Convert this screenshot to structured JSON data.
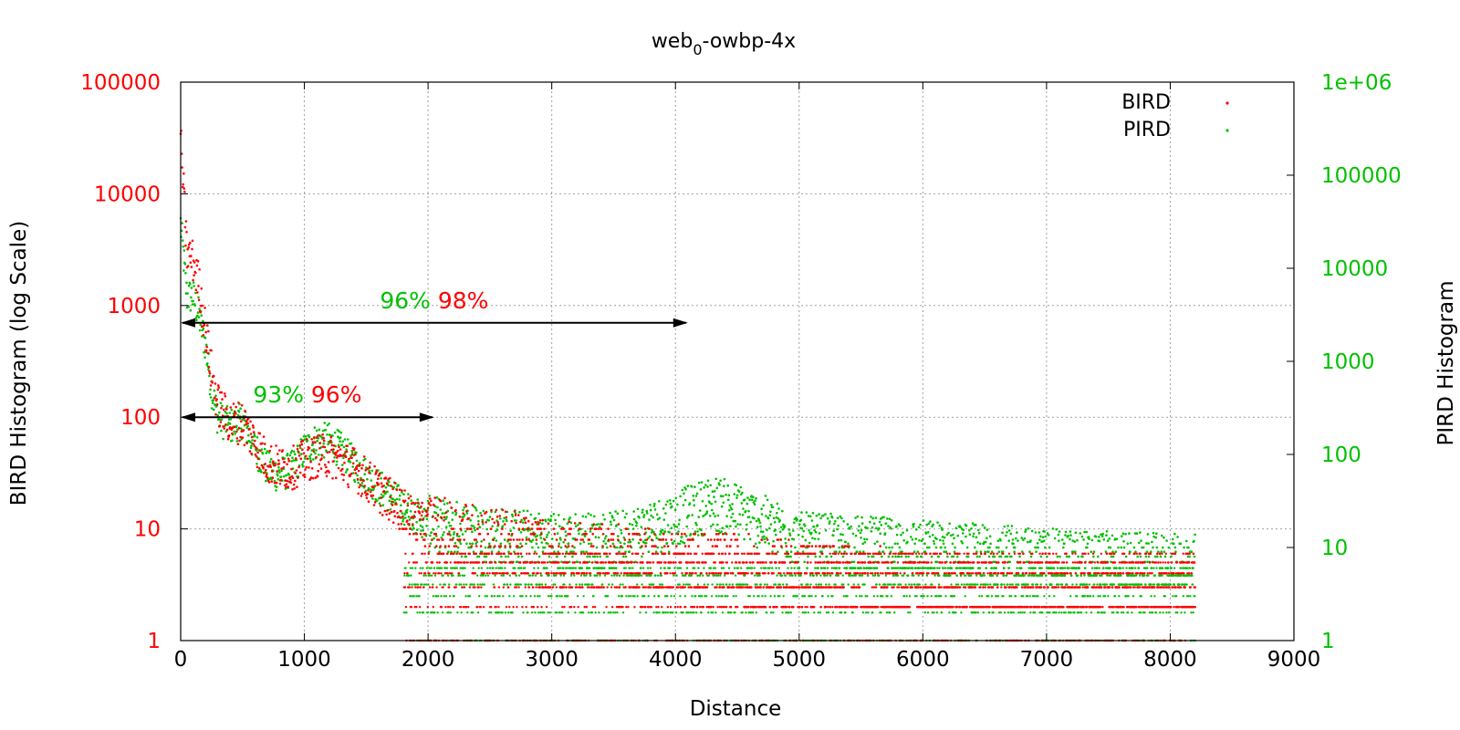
{
  "chart_data": {
    "type": "scatter",
    "title": {
      "main": "web",
      "sub": "0",
      "suffix": "-owbp-4x"
    },
    "xlabel": "Distance",
    "ylabel": "BIRD Histogram (log Scale)",
    "y2label": "PIRD Histogram",
    "xlim": [
      0,
      9000
    ],
    "ylim": [
      1,
      100000
    ],
    "y2lim": [
      1,
      1000000
    ],
    "log_y": true,
    "log_y2": true,
    "grid": true,
    "legend_position": "top-right",
    "x_ticks": [
      "0",
      "1000",
      "2000",
      "3000",
      "4000",
      "5000",
      "6000",
      "7000",
      "8000",
      "9000"
    ],
    "y_ticks": [
      "1",
      "10",
      "100",
      "1000",
      "10000",
      "100000"
    ],
    "y2_ticks": [
      "1",
      "10",
      "100",
      "1000",
      "10000",
      "100000",
      "1e+06"
    ],
    "colors": {
      "BIRD": "#ff0000",
      "PIRD": "#00c000",
      "axis": "#000000",
      "grid": "#a0a0a0"
    },
    "series": [
      {
        "name": "BIRD",
        "axis": "y",
        "approx_trend": [
          [
            0,
            30000
          ],
          [
            50,
            3000
          ],
          [
            100,
            2500
          ],
          [
            150,
            1500
          ],
          [
            200,
            600
          ],
          [
            250,
            250
          ],
          [
            300,
            130
          ],
          [
            400,
            90
          ],
          [
            500,
            90
          ],
          [
            600,
            60
          ],
          [
            700,
            40
          ],
          [
            800,
            35
          ],
          [
            900,
            35
          ],
          [
            1000,
            40
          ],
          [
            1100,
            45
          ],
          [
            1200,
            45
          ],
          [
            1300,
            40
          ],
          [
            1400,
            35
          ],
          [
            1500,
            28
          ],
          [
            1600,
            22
          ],
          [
            1700,
            18
          ],
          [
            1800,
            15
          ],
          [
            1900,
            12
          ],
          [
            2000,
            10
          ],
          [
            2500,
            8
          ],
          [
            3000,
            6
          ],
          [
            4000,
            5
          ],
          [
            5000,
            4
          ],
          [
            6000,
            3
          ],
          [
            7000,
            3
          ],
          [
            8000,
            3
          ],
          [
            8200,
            3
          ]
        ],
        "integer_floor_levels": [
          1,
          2,
          3,
          4,
          5,
          6,
          7,
          8,
          9
        ]
      },
      {
        "name": "PIRD",
        "axis": "y2",
        "approx_trend": [
          [
            0,
            30000
          ],
          [
            50,
            5000
          ],
          [
            100,
            5000
          ],
          [
            150,
            3000
          ],
          [
            200,
            1500
          ],
          [
            250,
            500
          ],
          [
            300,
            250
          ],
          [
            400,
            200
          ],
          [
            500,
            230
          ],
          [
            600,
            120
          ],
          [
            700,
            70
          ],
          [
            800,
            60
          ],
          [
            900,
            70
          ],
          [
            1000,
            110
          ],
          [
            1100,
            140
          ],
          [
            1200,
            140
          ],
          [
            1300,
            110
          ],
          [
            1400,
            80
          ],
          [
            1500,
            60
          ],
          [
            1600,
            45
          ],
          [
            1700,
            35
          ],
          [
            1800,
            28
          ],
          [
            1900,
            22
          ],
          [
            2000,
            18
          ],
          [
            2500,
            14
          ],
          [
            3000,
            12
          ],
          [
            3500,
            12
          ],
          [
            4000,
            20
          ],
          [
            4300,
            30
          ],
          [
            4500,
            25
          ],
          [
            5000,
            12
          ],
          [
            6000,
            10
          ],
          [
            7000,
            8
          ],
          [
            8000,
            7
          ],
          [
            8200,
            7
          ]
        ],
        "integer_floor_levels": [
          1,
          2,
          3,
          4,
          5,
          6,
          7,
          8,
          9,
          10
        ]
      }
    ],
    "annotations": [
      {
        "type": "double_arrow",
        "x_start": 0,
        "x_end": 4100,
        "y": 700,
        "label_pird": "96%",
        "label_bird": "98%"
      },
      {
        "type": "double_arrow",
        "x_start": 0,
        "x_end": 2050,
        "y": 100,
        "label_pird": "93%",
        "label_bird": "96%"
      }
    ]
  }
}
